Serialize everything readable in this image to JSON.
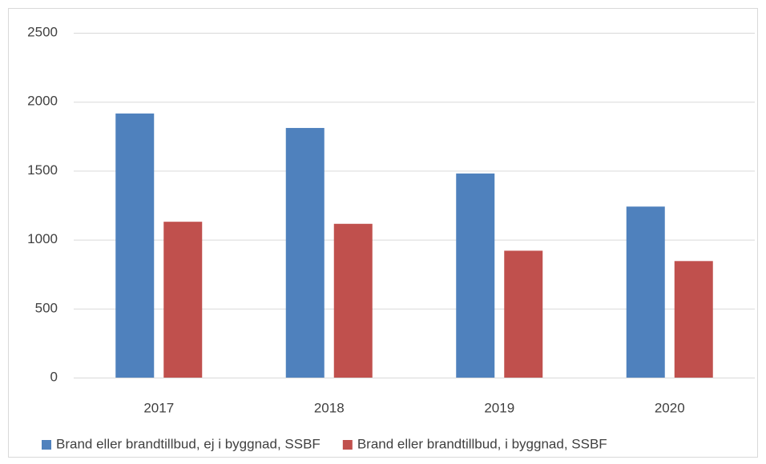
{
  "chart_data": {
    "type": "bar",
    "categories": [
      "2017",
      "2018",
      "2019",
      "2020"
    ],
    "series": [
      {
        "name": "Brand eller brandtillbud, ej i byggnad, SSBF",
        "color": "#4f81bd",
        "values": [
          1915,
          1810,
          1480,
          1240
        ]
      },
      {
        "name": "Brand eller brandtillbud, i byggnad, SSBF",
        "color": "#c0504d",
        "values": [
          1130,
          1115,
          920,
          845
        ]
      }
    ],
    "ylim": [
      0,
      2500
    ],
    "yticks": [
      0,
      500,
      1000,
      1500,
      2000,
      2500
    ],
    "grid": true,
    "legend": "bottom"
  }
}
